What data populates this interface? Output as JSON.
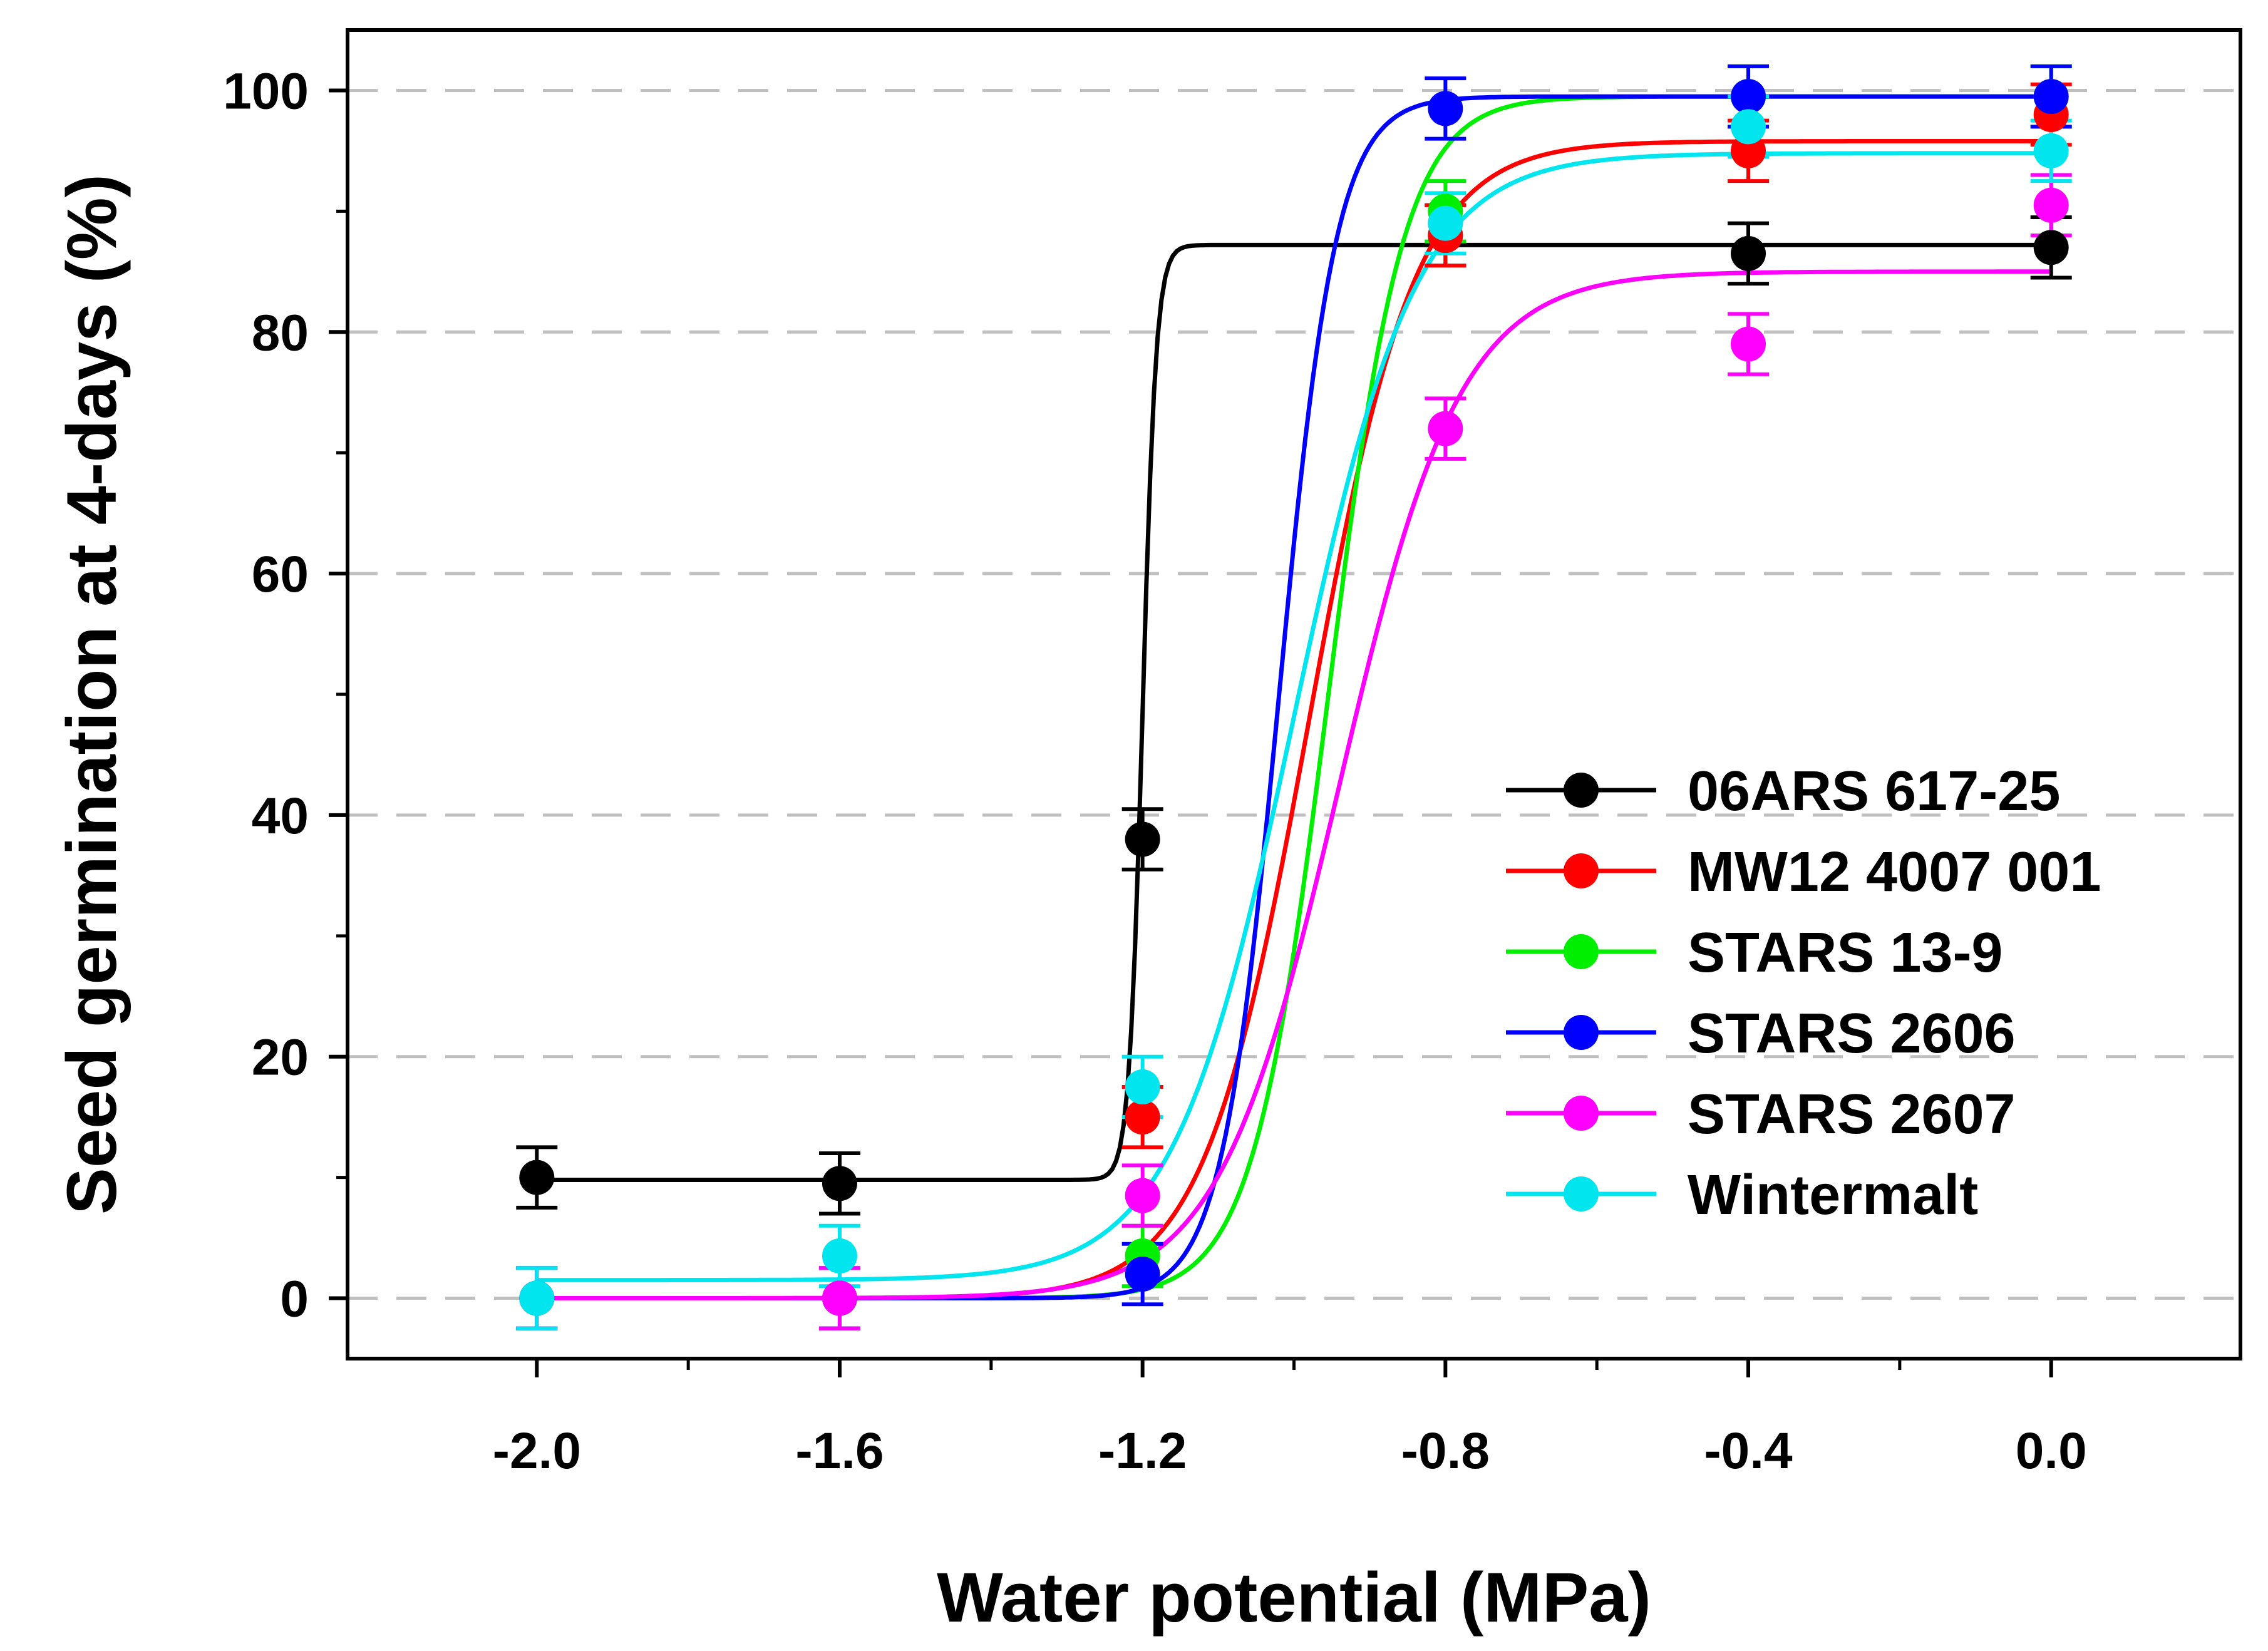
{
  "chart_data": {
    "type": "scatter",
    "xlabel": "Water potential (MPa)",
    "ylabel": "Seed germination at 4-days (%)",
    "xlim": [
      -2.25,
      0.25
    ],
    "ylim": [
      -5,
      105
    ],
    "x_ticks": [
      -2.0,
      -1.6,
      -1.2,
      -0.8,
      -0.4,
      0.0
    ],
    "x_tick_labels": [
      "-2.0",
      "-1.6",
      "-1.2",
      "-0.8",
      "-0.4",
      "0.0"
    ],
    "y_ticks": [
      0,
      20,
      40,
      60,
      80,
      100
    ],
    "y_tick_labels": [
      "0",
      "20",
      "40",
      "60",
      "80",
      "100"
    ],
    "grid": "horizontal dashed",
    "legend_position": "right",
    "x": [
      -2.0,
      -1.6,
      -1.2,
      -0.8,
      -0.4,
      0.0
    ],
    "series": [
      {
        "name": "06ARS 617-25",
        "color": "#000000",
        "values": [
          10,
          9.5,
          38,
          88,
          86.5,
          87
        ],
        "errors": [
          2.5,
          2.5,
          2.5,
          2.5,
          2.5,
          2.5
        ],
        "fit": {
          "model": "step",
          "low": 9.8,
          "high": 87.2,
          "x0": -1.2
        }
      },
      {
        "name": "MW12 4007 001",
        "color": "#ff0000",
        "values": [
          0,
          0,
          15,
          88,
          95,
          98
        ],
        "errors": [
          2.5,
          2.5,
          2.5,
          2.5,
          2.5,
          2.5
        ],
        "fit": {
          "model": "logistic",
          "a": 95.8,
          "x0": -0.98,
          "b": 0.07,
          "y0": 0
        }
      },
      {
        "name": "STARS 13-9",
        "color": "#00ee00",
        "values": [
          0,
          0,
          3.5,
          90,
          99.5,
          99.5
        ],
        "errors": [
          2.5,
          2.5,
          2.5,
          2.5,
          2.5,
          2.5
        ],
        "fit": {
          "model": "logistic",
          "a": 99.5,
          "x0": -0.955,
          "b": 0.05,
          "y0": 0
        }
      },
      {
        "name": "STARS 2606",
        "color": "#0000ff",
        "values": [
          0,
          0,
          2,
          98.5,
          99.5,
          99.5
        ],
        "errors": [
          2.5,
          2.5,
          2.5,
          2.5,
          2.5,
          2.5
        ],
        "fit": {
          "model": "logistic",
          "a": 99.5,
          "x0": -1.02,
          "b": 0.038,
          "y0": 0
        }
      },
      {
        "name": "STARS 2607",
        "color": "#ff00ff",
        "values": [
          0,
          0,
          8.5,
          72,
          79,
          90.5
        ],
        "errors": [
          2.5,
          2.5,
          2.5,
          2.5,
          2.5,
          2.5
        ],
        "fit": {
          "model": "logistic",
          "a": 85,
          "x0": -0.94,
          "b": 0.08,
          "y0": 0
        }
      },
      {
        "name": "Wintermalt",
        "color": "#00e5ee",
        "values": [
          0,
          3.5,
          17.5,
          89,
          97,
          95
        ],
        "errors": [
          2.5,
          2.5,
          2.5,
          2.5,
          2.5,
          2.5
        ],
        "fit": {
          "model": "logistic",
          "a": 94.8,
          "x0": -1.0,
          "b": 0.08,
          "y0": 1.5
        }
      }
    ]
  }
}
